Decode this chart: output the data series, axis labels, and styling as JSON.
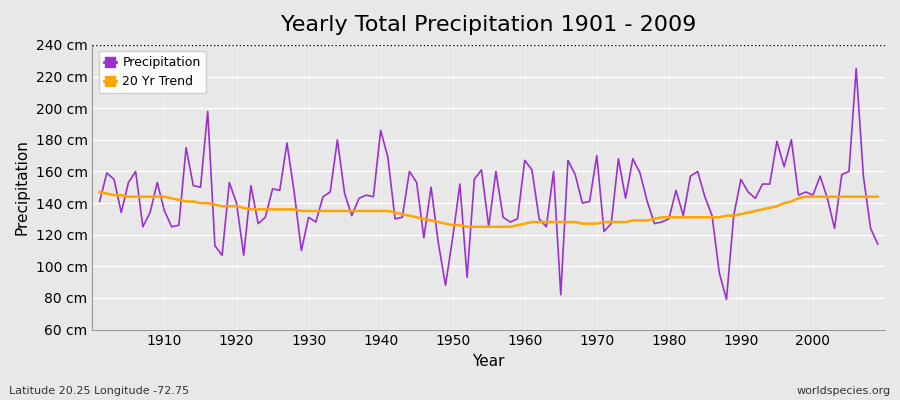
{
  "title": "Yearly Total Precipitation 1901 - 2009",
  "xlabel": "Year",
  "ylabel": "Precipitation",
  "subtitle": "Latitude 20.25 Longitude -72.75",
  "watermark": "worldspecies.org",
  "ylim": [
    60,
    240
  ],
  "yticks": [
    60,
    80,
    100,
    120,
    140,
    160,
    180,
    200,
    220,
    240
  ],
  "ytick_labels": [
    "60 cm",
    "80 cm",
    "100 cm",
    "120 cm",
    "140 cm",
    "160 cm",
    "180 cm",
    "200 cm",
    "220 cm",
    "240 cm"
  ],
  "years": [
    1901,
    1902,
    1903,
    1904,
    1905,
    1906,
    1907,
    1908,
    1909,
    1910,
    1911,
    1912,
    1913,
    1914,
    1915,
    1916,
    1917,
    1918,
    1919,
    1920,
    1921,
    1922,
    1923,
    1924,
    1925,
    1926,
    1927,
    1928,
    1929,
    1930,
    1931,
    1932,
    1933,
    1934,
    1935,
    1936,
    1937,
    1938,
    1939,
    1940,
    1941,
    1942,
    1943,
    1944,
    1945,
    1946,
    1947,
    1948,
    1949,
    1950,
    1951,
    1952,
    1953,
    1954,
    1955,
    1956,
    1957,
    1958,
    1959,
    1960,
    1961,
    1962,
    1963,
    1964,
    1965,
    1966,
    1967,
    1968,
    1969,
    1970,
    1971,
    1972,
    1973,
    1974,
    1975,
    1976,
    1977,
    1978,
    1979,
    1980,
    1981,
    1982,
    1983,
    1984,
    1985,
    1986,
    1987,
    1988,
    1989,
    1990,
    1991,
    1992,
    1993,
    1994,
    1995,
    1996,
    1997,
    1998,
    1999,
    2000,
    2001,
    2002,
    2003,
    2004,
    2005,
    2006,
    2007,
    2008,
    2009
  ],
  "precip": [
    141,
    159,
    155,
    134,
    153,
    160,
    125,
    134,
    153,
    135,
    125,
    126,
    175,
    151,
    150,
    198,
    113,
    107,
    153,
    140,
    107,
    151,
    127,
    131,
    149,
    148,
    178,
    147,
    110,
    131,
    128,
    144,
    147,
    180,
    146,
    132,
    143,
    145,
    144,
    186,
    169,
    130,
    131,
    160,
    153,
    118,
    150,
    115,
    88,
    118,
    152,
    93,
    155,
    161,
    125,
    160,
    131,
    128,
    130,
    167,
    161,
    130,
    125,
    160,
    82,
    167,
    158,
    140,
    141,
    170,
    122,
    127,
    168,
    143,
    168,
    159,
    141,
    127,
    128,
    130,
    148,
    132,
    157,
    160,
    144,
    132,
    96,
    79,
    132,
    155,
    147,
    143,
    152,
    152,
    179,
    163,
    180,
    145,
    147,
    145,
    157,
    143,
    124,
    158,
    160,
    225,
    157,
    124,
    114
  ],
  "trend": [
    147,
    146,
    145,
    145,
    144,
    144,
    144,
    144,
    144,
    144,
    143,
    142,
    141,
    141,
    140,
    140,
    139,
    138,
    138,
    138,
    137,
    136,
    136,
    136,
    136,
    136,
    136,
    136,
    135,
    135,
    135,
    135,
    135,
    135,
    135,
    135,
    135,
    135,
    135,
    135,
    135,
    134,
    133,
    132,
    131,
    130,
    129,
    128,
    127,
    126,
    126,
    125,
    125,
    125,
    125,
    125,
    125,
    125,
    126,
    127,
    128,
    128,
    128,
    128,
    128,
    128,
    128,
    127,
    127,
    127,
    128,
    128,
    128,
    128,
    129,
    129,
    129,
    130,
    131,
    131,
    131,
    131,
    131,
    131,
    131,
    131,
    131,
    132,
    132,
    133,
    134,
    135,
    136,
    137,
    138,
    140,
    141,
    143,
    144,
    144,
    144,
    144,
    144,
    144,
    144,
    144,
    144,
    144,
    144
  ],
  "precip_color": "#9B30D0",
  "trend_color": "#FFA500",
  "bg_color": "#E8E8E8",
  "grid_color": "#FFFFFF",
  "title_fontsize": 16,
  "axis_fontsize": 10,
  "dotted_line_y": 240
}
